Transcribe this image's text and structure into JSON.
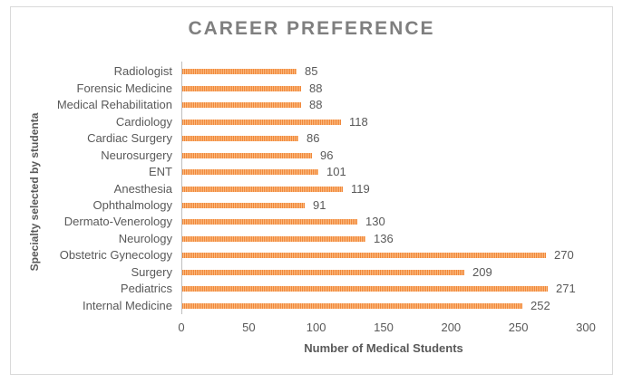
{
  "chart_data": {
    "type": "bar",
    "orientation": "horizontal",
    "title": "CAREER PREFERENCE",
    "xlabel": "Number of Medical Students",
    "ylabel": "Specialty selected by studenta",
    "categories": [
      "Radiologist",
      "Forensic Medicine",
      "Medical Rehabilitation",
      "Cardiology",
      "Cardiac Surgery",
      "Neurosurgery",
      "ENT",
      "Anesthesia",
      "Ophthalmology",
      "Dermato-Venerology",
      "Neurology",
      "Obstetric Gynecology",
      "Surgery",
      "Pediatrics",
      "Internal Medicine"
    ],
    "values": [
      85,
      88,
      88,
      118,
      86,
      96,
      101,
      119,
      91,
      130,
      136,
      270,
      209,
      271,
      252
    ],
    "xlim": [
      0,
      300
    ],
    "xticks": [
      0,
      50,
      100,
      150,
      200,
      250,
      300
    ],
    "grid": false,
    "legend": null,
    "data_labels": true,
    "colors": {
      "bar_stripe_dark": "#F0883B",
      "bar_stripe_light": "#FBB97E",
      "title_text": "#7F7F7F",
      "axis_text": "#595959",
      "axis_line": "#BFBFBF",
      "frame_border": "#D9D9D9"
    }
  }
}
